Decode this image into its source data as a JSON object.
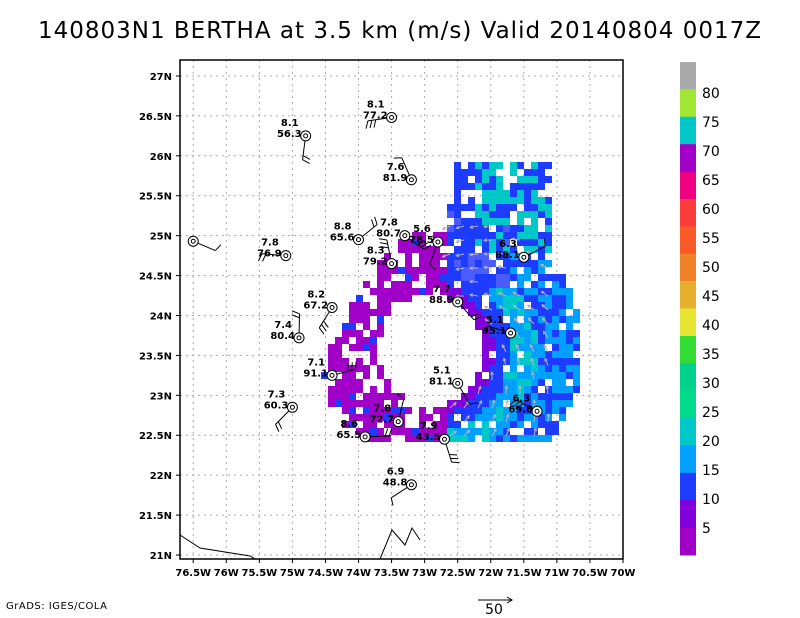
{
  "title": "140803N1 BERTHA at 3.5 km (m/s) Valid 20140804 0017Z",
  "credit": "GrADS: IGES/COLA",
  "chart_data": {
    "type": "heatmap",
    "x_ticks": [
      "76.5W",
      "76W",
      "75.5W",
      "75W",
      "74.5W",
      "74W",
      "73.5W",
      "73W",
      "72.5W",
      "72W",
      "71.5W",
      "71W",
      "70.5W",
      "70W"
    ],
    "y_ticks": [
      "21N",
      "21.5N",
      "22N",
      "22.5N",
      "23N",
      "23.5N",
      "24N",
      "24.5N",
      "25N",
      "25.5N",
      "26N",
      "26.5N",
      "27N"
    ],
    "xlim": [
      -76.7,
      -70.0
    ],
    "ylim": [
      20.95,
      27.2
    ],
    "grid": true,
    "colorbar": {
      "labels": [
        "5",
        "10",
        "15",
        "20",
        "25",
        "30",
        "35",
        "40",
        "45",
        "50",
        "55",
        "60",
        "65",
        "70",
        "75",
        "80"
      ],
      "colors": [
        "#a000c8",
        "#8200dc",
        "#1e3cff",
        "#00a0ff",
        "#00c8c8",
        "#00dc8c",
        "#00d28c",
        "#32dc32",
        "#e6e632",
        "#e6af2d",
        "#f08228",
        "#fa5a28",
        "#fa3c3c",
        "#f00082",
        "#a000c8",
        "#00c8c8",
        "#a0e632",
        "#aaaaaa"
      ]
    },
    "vector_scale_label": "50",
    "dropsondes": [
      {
        "lon": -76.5,
        "lat": 24.93,
        "label_top": "",
        "label_bottom": ""
      },
      {
        "lon": -74.8,
        "lat": 26.25,
        "label_top": "8.1",
        "label_bottom": "56.3"
      },
      {
        "lon": -73.5,
        "lat": 26.48,
        "label_top": "8.1",
        "label_bottom": "77.2"
      },
      {
        "lon": -73.2,
        "lat": 25.7,
        "label_top": "7.6",
        "label_bottom": "81.9"
      },
      {
        "lon": -74.0,
        "lat": 24.95,
        "label_top": "8.8",
        "label_bottom": "65.6"
      },
      {
        "lon": -73.3,
        "lat": 25.0,
        "label_top": "7.8",
        "label_bottom": "80.7"
      },
      {
        "lon": -72.8,
        "lat": 24.92,
        "label_top": "5.6",
        "label_bottom": "78.5"
      },
      {
        "lon": -75.1,
        "lat": 24.75,
        "label_top": "7.8",
        "label_bottom": "76.9"
      },
      {
        "lon": -73.5,
        "lat": 24.65,
        "label_top": "8.3",
        "label_bottom": "79.2"
      },
      {
        "lon": -71.5,
        "lat": 24.73,
        "label_top": "6.3",
        "label_bottom": "88.1"
      },
      {
        "lon": -72.5,
        "lat": 24.17,
        "label_top": "7.7",
        "label_bottom": "88.9"
      },
      {
        "lon": -74.4,
        "lat": 24.1,
        "label_top": "8.2",
        "label_bottom": "67.2"
      },
      {
        "lon": -71.7,
        "lat": 23.78,
        "label_top": "5.1",
        "label_bottom": "95.1"
      },
      {
        "lon": -74.9,
        "lat": 23.72,
        "label_top": "7.4",
        "label_bottom": "80.4"
      },
      {
        "lon": -74.4,
        "lat": 23.25,
        "label_top": "7.1",
        "label_bottom": "91.1"
      },
      {
        "lon": -72.5,
        "lat": 23.15,
        "label_top": "5.1",
        "label_bottom": "81.1"
      },
      {
        "lon": -75.0,
        "lat": 22.85,
        "label_top": "7.3",
        "label_bottom": "60.3"
      },
      {
        "lon": -71.3,
        "lat": 22.8,
        "label_top": "6.3",
        "label_bottom": "69.8"
      },
      {
        "lon": -73.4,
        "lat": 22.67,
        "label_top": "7.8",
        "label_bottom": "72.7"
      },
      {
        "lon": -73.9,
        "lat": 22.48,
        "label_top": "8.6",
        "label_bottom": "65.5"
      },
      {
        "lon": -72.7,
        "lat": 22.45,
        "label_top": "7.9",
        "label_bottom": "43.5"
      },
      {
        "lon": -73.2,
        "lat": 21.88,
        "label_top": "6.9",
        "label_bottom": "48.8"
      }
    ]
  }
}
